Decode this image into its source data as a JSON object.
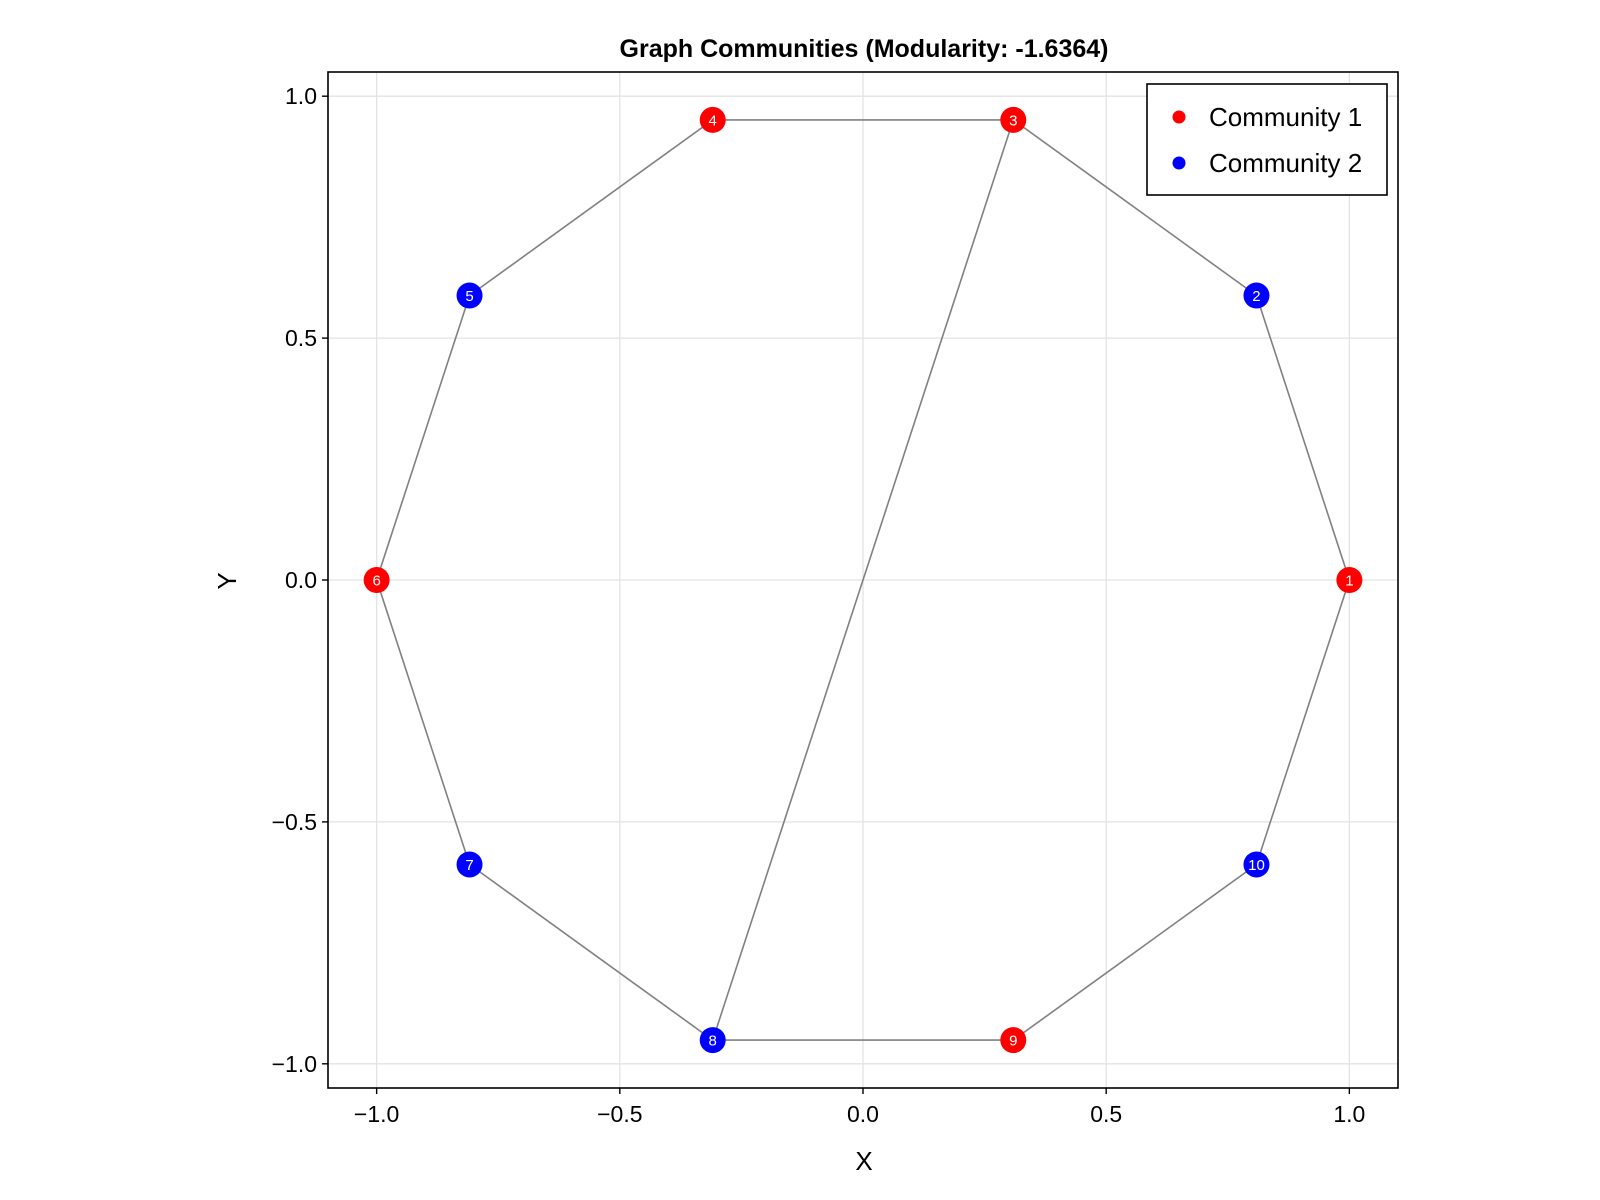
{
  "chart_data": {
    "type": "scatter",
    "title": "Graph Communities (Modularity: -1.6364)",
    "xlabel": "X",
    "ylabel": "Y",
    "xlim": [
      -1.1,
      1.1
    ],
    "ylim": [
      -1.05,
      1.05
    ],
    "xticks": [
      -1.0,
      -0.5,
      0.0,
      0.5,
      1.0
    ],
    "xtick_labels": [
      "−1.0",
      "−0.5",
      "0.0",
      "0.5",
      "1.0"
    ],
    "yticks": [
      -1.0,
      -0.5,
      0.0,
      0.5,
      1.0
    ],
    "ytick_labels": [
      "−1.0",
      "−0.5",
      "0.0",
      "0.5",
      "1.0"
    ],
    "grid": true,
    "legend_position": "top-right",
    "series": [
      {
        "name": "Community 1",
        "color": "#ff0000"
      },
      {
        "name": "Community 2",
        "color": "#0000ff"
      }
    ],
    "nodes": [
      {
        "id": "1",
        "x": 1.0,
        "y": 0.0,
        "community": 0
      },
      {
        "id": "2",
        "x": 0.809,
        "y": 0.588,
        "community": 1
      },
      {
        "id": "3",
        "x": 0.309,
        "y": 0.951,
        "community": 0
      },
      {
        "id": "4",
        "x": -0.309,
        "y": 0.951,
        "community": 0
      },
      {
        "id": "5",
        "x": -0.809,
        "y": 0.588,
        "community": 1
      },
      {
        "id": "6",
        "x": -1.0,
        "y": 0.0,
        "community": 0
      },
      {
        "id": "7",
        "x": -0.809,
        "y": -0.588,
        "community": 1
      },
      {
        "id": "8",
        "x": -0.309,
        "y": -0.951,
        "community": 1
      },
      {
        "id": "9",
        "x": 0.309,
        "y": -0.951,
        "community": 0
      },
      {
        "id": "10",
        "x": 0.809,
        "y": -0.588,
        "community": 1
      }
    ],
    "edges": [
      [
        "1",
        "2"
      ],
      [
        "2",
        "3"
      ],
      [
        "3",
        "4"
      ],
      [
        "4",
        "5"
      ],
      [
        "5",
        "6"
      ],
      [
        "6",
        "7"
      ],
      [
        "7",
        "8"
      ],
      [
        "8",
        "9"
      ],
      [
        "9",
        "10"
      ],
      [
        "10",
        "1"
      ],
      [
        "3",
        "8"
      ]
    ],
    "edge_color": "#808080"
  }
}
